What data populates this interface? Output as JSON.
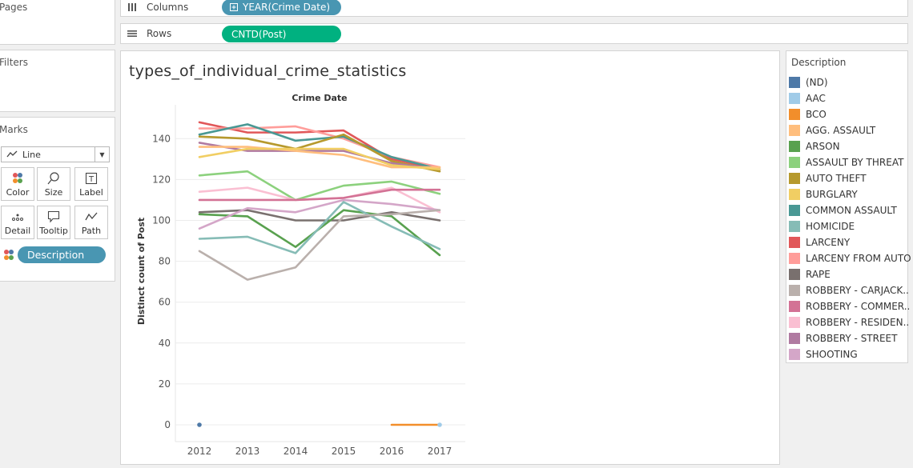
{
  "left_panel": {
    "pages_title": "Pages",
    "filters_title": "Filters",
    "marks_title": "Marks",
    "mark_type": "Line",
    "buttons": {
      "color": "Color",
      "size": "Size",
      "label": "Label",
      "detail": "Detail",
      "tooltip": "Tooltip",
      "path": "Path"
    },
    "color_pill": "Description"
  },
  "shelves": {
    "columns_label": "Columns",
    "columns_pill": "YEAR(Crime Date)",
    "rows_label": "Rows",
    "rows_pill": "CNTD(Post)"
  },
  "sheet_title": "types_of_individual_crime_statistics",
  "legend": {
    "title": "Description",
    "items": [
      {
        "label": "(ND)",
        "color": "#4e79a7"
      },
      {
        "label": "AAC",
        "color": "#a0cbe8"
      },
      {
        "label": "BCO",
        "color": "#f28e2b"
      },
      {
        "label": "AGG. ASSAULT",
        "color": "#ffbe7d"
      },
      {
        "label": "ARSON",
        "color": "#59a14f"
      },
      {
        "label": "ASSAULT BY THREAT",
        "color": "#8cd17d"
      },
      {
        "label": "AUTO THEFT",
        "color": "#b6992d"
      },
      {
        "label": "BURGLARY",
        "color": "#f1ce63"
      },
      {
        "label": "COMMON ASSAULT",
        "color": "#499894"
      },
      {
        "label": "HOMICIDE",
        "color": "#86bcb6"
      },
      {
        "label": "LARCENY",
        "color": "#e15759"
      },
      {
        "label": "LARCENY FROM AUTO",
        "color": "#ff9d9a"
      },
      {
        "label": "RAPE",
        "color": "#79706e"
      },
      {
        "label": "ROBBERY - CARJACK..",
        "color": "#bab0ac"
      },
      {
        "label": "ROBBERY - COMMER..",
        "color": "#d37295"
      },
      {
        "label": "ROBBERY - RESIDEN..",
        "color": "#fabfd2"
      },
      {
        "label": "ROBBERY - STREET",
        "color": "#b07aa1"
      },
      {
        "label": "SHOOTING",
        "color": "#d4a6c8"
      }
    ]
  },
  "chart_data": {
    "type": "line",
    "title": "Crime Date",
    "xlabel": "",
    "ylabel": "Distinct count of Post",
    "x": [
      "2012",
      "2013",
      "2014",
      "2015",
      "2016",
      "2017"
    ],
    "yticks": [
      0,
      20,
      40,
      60,
      80,
      100,
      120,
      140
    ],
    "ylim": [
      -8,
      156
    ],
    "grid": true,
    "legend_placement": "right",
    "series": [
      {
        "name": "LARCENY",
        "color": "#e15759",
        "values": [
          148,
          143,
          143,
          144,
          130,
          125
        ]
      },
      {
        "name": "LARCENY FROM AUTO",
        "color": "#ff9d9a",
        "values": [
          145,
          145,
          146,
          140,
          131,
          126
        ]
      },
      {
        "name": "COMMON ASSAULT",
        "color": "#499894",
        "values": [
          142,
          147,
          139,
          141,
          131,
          125
        ]
      },
      {
        "name": "AUTO THEFT",
        "color": "#b6992d",
        "values": [
          141,
          140,
          135,
          142,
          129,
          124
        ]
      },
      {
        "name": "ROBBERY - STREET",
        "color": "#b07aa1",
        "values": [
          138,
          134,
          134,
          134,
          128,
          125
        ]
      },
      {
        "name": "AGG. ASSAULT",
        "color": "#ffbe7d",
        "values": [
          136,
          136,
          134,
          132,
          126,
          126
        ]
      },
      {
        "name": "BURGLARY",
        "color": "#f1ce63",
        "values": [
          131,
          135,
          135,
          135,
          127,
          125
        ]
      },
      {
        "name": "ASSAULT BY THREAT",
        "color": "#8cd17d",
        "values": [
          122,
          124,
          110,
          117,
          119,
          113
        ]
      },
      {
        "name": "ROBBERY - RESIDEN..",
        "color": "#fabfd2",
        "values": [
          114,
          116,
          110,
          111,
          116,
          104
        ]
      },
      {
        "name": "ROBBERY - COMMER..",
        "color": "#d37295",
        "values": [
          110,
          110,
          110,
          111,
          115,
          115
        ]
      },
      {
        "name": "RAPE",
        "color": "#79706e",
        "values": [
          104,
          105,
          100,
          100,
          104,
          100
        ]
      },
      {
        "name": "ARSON",
        "color": "#59a14f",
        "values": [
          103,
          102,
          87,
          105,
          102,
          83
        ]
      },
      {
        "name": "SHOOTING",
        "color": "#d4a6c8",
        "values": [
          96,
          106,
          104,
          110,
          108,
          105
        ]
      },
      {
        "name": "HOMICIDE",
        "color": "#86bcb6",
        "values": [
          91,
          92,
          84,
          109,
          97,
          86
        ]
      },
      {
        "name": "ROBBERY - CARJACK..",
        "color": "#bab0ac",
        "values": [
          85,
          71,
          77,
          102,
          103,
          105
        ]
      },
      {
        "name": "(ND)",
        "color": "#4e79a7",
        "values": [
          0,
          null,
          null,
          null,
          null,
          null
        ]
      },
      {
        "name": "BCO",
        "color": "#f28e2b",
        "values": [
          null,
          null,
          null,
          null,
          0,
          0
        ]
      },
      {
        "name": "AAC",
        "color": "#a0cbe8",
        "values": [
          null,
          null,
          null,
          null,
          null,
          0
        ]
      }
    ]
  }
}
